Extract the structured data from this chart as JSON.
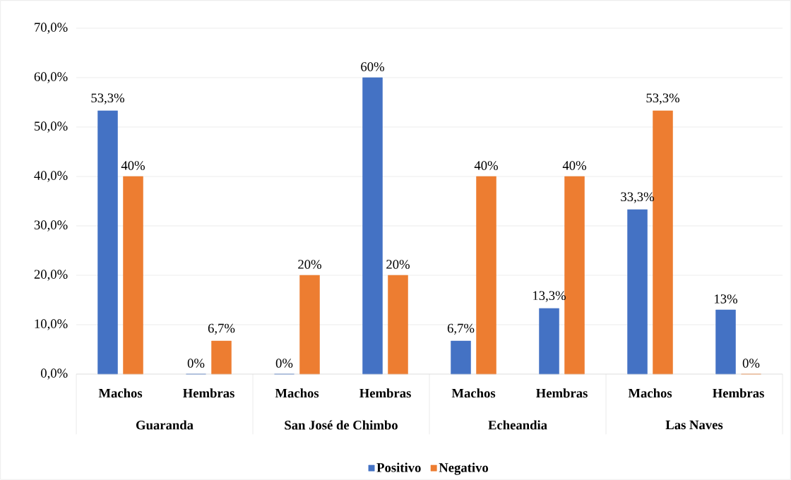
{
  "chart_data": {
    "type": "bar",
    "categories": [
      "Machos",
      "Hembras",
      "Machos",
      "Hembras",
      "Machos",
      "Hembras",
      "Machos",
      "Hembras"
    ],
    "series": [
      {
        "name": "Positivo",
        "color": "#4472c4",
        "values": [
          53.3,
          0,
          0,
          60,
          6.7,
          13.3,
          33.3,
          13
        ],
        "value_labels": [
          "53,3%",
          "0%",
          "0%",
          "60%",
          "6,7%",
          "13,3%",
          "33,3%",
          "13%"
        ]
      },
      {
        "name": "Negativo",
        "color": "#ed7d31",
        "values": [
          40,
          6.7,
          20,
          20,
          40,
          40,
          53.3,
          0
        ],
        "value_labels": [
          "40%",
          "6,7%",
          "20%",
          "20%",
          "40%",
          "40%",
          "53,3%",
          "0%"
        ]
      }
    ],
    "annotations": [
      "Guaranda",
      "San José de Chimbo",
      "Echeandia",
      "Las Naves"
    ],
    "ylim": [
      0,
      70
    ],
    "yticks": [
      {
        "value": 0,
        "label": "0,0%"
      },
      {
        "value": 10,
        "label": "10,0%"
      },
      {
        "value": 20,
        "label": "20,0%"
      },
      {
        "value": 30,
        "label": "30,0%"
      },
      {
        "value": 40,
        "label": "40,0%"
      },
      {
        "value": 50,
        "label": "50,0%"
      },
      {
        "value": 60,
        "label": "60,0%"
      },
      {
        "value": 70,
        "label": "70,0%"
      }
    ],
    "grid": "y",
    "legend": "bottom"
  }
}
